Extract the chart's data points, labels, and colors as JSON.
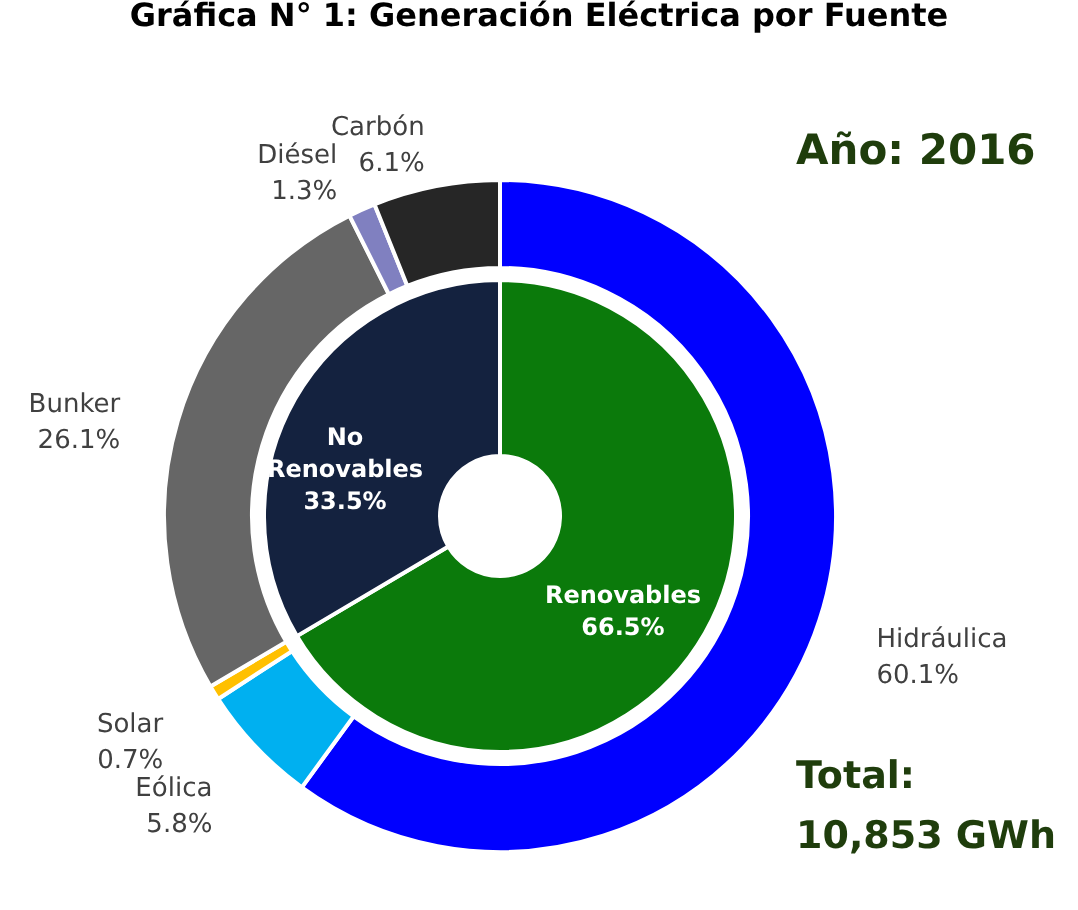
{
  "chart_data": [
    {
      "type": "donut",
      "title": "Gráfica N° 1: Generación Eléctrica por Fuente",
      "categories": [
        "Hidráulica",
        "Eólica",
        "Solar",
        "Bunker",
        "Diésel",
        "Carbón"
      ],
      "values": [
        60.1,
        5.8,
        0.7,
        26.1,
        1.3,
        6.1
      ],
      "colors": [
        "#0000ff",
        "#00b0f0",
        "#ffc000",
        "#666666",
        "#8080c0",
        "#262626"
      ],
      "value_labels": [
        "60.1%",
        "5.8%",
        "0.7%",
        "26.1%",
        "1.3%",
        "6.1%"
      ],
      "annotations": [
        "Año: 2016",
        "Total:\n10,853 GWh"
      ]
    },
    {
      "type": "donut",
      "categories": [
        "Renovables",
        "No Renovables"
      ],
      "values": [
        66.5,
        33.5
      ],
      "colors": [
        "#0b7a0b",
        "#14223f"
      ],
      "value_labels": [
        "66.5%",
        "33.5%"
      ]
    }
  ]
}
